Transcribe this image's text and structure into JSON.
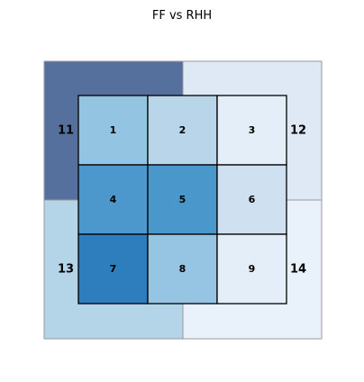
{
  "chart_data": {
    "type": "heatmap",
    "title": "FF vs RHH",
    "outer_quadrants": [
      {
        "label": "11",
        "color": "#56709d"
      },
      {
        "label": "12",
        "color": "#dfe8f5"
      },
      {
        "label": "13",
        "color": "#b4d4e8"
      },
      {
        "label": "14",
        "color": "#e9f1fa"
      }
    ],
    "inner_cells": [
      {
        "label": "1",
        "color": "#93c4e2"
      },
      {
        "label": "2",
        "color": "#b9d5ea"
      },
      {
        "label": "3",
        "color": "#e3eef8"
      },
      {
        "label": "4",
        "color": "#4c98cc"
      },
      {
        "label": "5",
        "color": "#4a97cb"
      },
      {
        "label": "6",
        "color": "#cfe0f1"
      },
      {
        "label": "7",
        "color": "#2e7ebd"
      },
      {
        "label": "8",
        "color": "#95c5e3"
      },
      {
        "label": "9",
        "color": "#e3eef8"
      }
    ],
    "grid_rows": 3,
    "grid_cols": 3
  }
}
